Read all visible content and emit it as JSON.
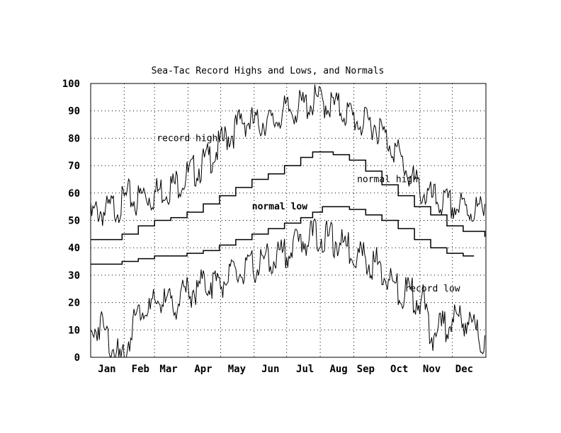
{
  "chart_data": {
    "type": "line",
    "title": "Sea-Tac Record Highs and Lows, and Normals",
    "xlabel": "",
    "ylabel": "",
    "ylim": [
      0,
      100
    ],
    "yticks": [
      0,
      10,
      20,
      30,
      40,
      50,
      60,
      70,
      80,
      90,
      100
    ],
    "xlim": [
      1,
      366
    ],
    "grid": true,
    "x_tick_labels": [
      {
        "label": "Jan",
        "day": 16
      },
      {
        "label": "Feb",
        "day": 47
      },
      {
        "label": "Mar",
        "day": 73
      },
      {
        "label": "Apr",
        "day": 105
      },
      {
        "label": "May",
        "day": 136
      },
      {
        "label": "Jun",
        "day": 167
      },
      {
        "label": "Jul",
        "day": 199
      },
      {
        "label": "Aug",
        "day": 230
      },
      {
        "label": "Sep",
        "day": 255
      },
      {
        "label": "Oct",
        "day": 286
      },
      {
        "label": "Nov",
        "day": 316
      },
      {
        "label": "Dec",
        "day": 346
      }
    ],
    "x_grid_days": [
      32,
      60,
      91,
      121,
      152,
      182,
      213,
      244,
      274,
      305,
      335
    ],
    "series": [
      {
        "name": "record high",
        "style": "jagged",
        "x": [
          1,
          8,
          15,
          22,
          29,
          36,
          43,
          50,
          57,
          64,
          71,
          78,
          85,
          92,
          99,
          106,
          113,
          120,
          127,
          134,
          141,
          148,
          155,
          162,
          169,
          176,
          183,
          190,
          197,
          204,
          211,
          218,
          225,
          232,
          239,
          246,
          253,
          260,
          267,
          274,
          281,
          288,
          295,
          302,
          309,
          316,
          323,
          330,
          337,
          344,
          351,
          358,
          365
        ],
        "y": [
          54,
          57,
          56,
          58,
          59,
          62,
          60,
          63,
          62,
          64,
          65,
          66,
          68,
          70,
          72,
          74,
          77,
          80,
          84,
          86,
          90,
          89,
          88,
          90,
          88,
          92,
          93,
          94,
          95,
          96,
          97,
          96,
          95,
          94,
          92,
          90,
          88,
          89,
          87,
          83,
          80,
          75,
          70,
          66,
          63,
          61,
          60,
          59,
          58,
          58,
          57,
          57,
          56
        ]
      },
      {
        "name": "normal high",
        "style": "step",
        "x": [
          1,
          15,
          30,
          45,
          60,
          75,
          90,
          105,
          120,
          135,
          150,
          165,
          180,
          195,
          206,
          215,
          225,
          240,
          255,
          270,
          285,
          300,
          315,
          330,
          345,
          365
        ],
        "y": [
          43,
          43,
          45,
          48,
          50,
          51,
          53,
          56,
          59,
          62,
          65,
          67,
          70,
          73,
          75,
          75,
          74,
          72,
          68,
          63,
          59,
          55,
          52,
          48,
          46,
          44
        ]
      },
      {
        "name": "normal low",
        "style": "step",
        "x": [
          1,
          15,
          30,
          45,
          60,
          75,
          90,
          105,
          120,
          135,
          150,
          165,
          180,
          195,
          206,
          215,
          225,
          240,
          255,
          270,
          285,
          300,
          315,
          330,
          345,
          355
        ],
        "y": [
          34,
          34,
          35,
          36,
          37,
          37,
          38,
          39,
          41,
          43,
          45,
          47,
          49,
          51,
          53,
          55,
          55,
          54,
          52,
          50,
          47,
          43,
          40,
          38,
          37,
          37
        ]
      },
      {
        "name": "record low",
        "style": "jagged",
        "x": [
          1,
          5,
          10,
          15,
          20,
          25,
          29,
          35,
          42,
          49,
          56,
          63,
          70,
          77,
          84,
          91,
          98,
          105,
          112,
          119,
          126,
          133,
          140,
          147,
          154,
          161,
          168,
          175,
          182,
          189,
          196,
          203,
          210,
          217,
          224,
          231,
          238,
          245,
          252,
          259,
          266,
          273,
          280,
          287,
          294,
          301,
          308,
          315,
          322,
          329,
          336,
          343,
          350,
          357,
          365
        ],
        "y": [
          10,
          14,
          16,
          12,
          9,
          5,
          0,
          8,
          18,
          22,
          20,
          24,
          23,
          22,
          25,
          27,
          28,
          30,
          31,
          30,
          32,
          33,
          34,
          35,
          37,
          38,
          39,
          40,
          42,
          44,
          46,
          47,
          48,
          47,
          46,
          45,
          43,
          42,
          40,
          38,
          37,
          33,
          30,
          26,
          28,
          25,
          24,
          10,
          14,
          15,
          18,
          16,
          17,
          12,
          8
        ]
      }
    ],
    "annotations": [
      {
        "text": "record high",
        "x": 62,
        "y": 79,
        "bold": false
      },
      {
        "text": "normal high",
        "x": 247,
        "y": 64,
        "bold": false
      },
      {
        "text": "normal low",
        "x": 150,
        "y": 54,
        "bold": true
      },
      {
        "text": "record low",
        "x": 291,
        "y": 24,
        "bold": false
      }
    ],
    "colors": {
      "line": "#000000",
      "grid": "#000000",
      "background": "#ffffff"
    }
  }
}
